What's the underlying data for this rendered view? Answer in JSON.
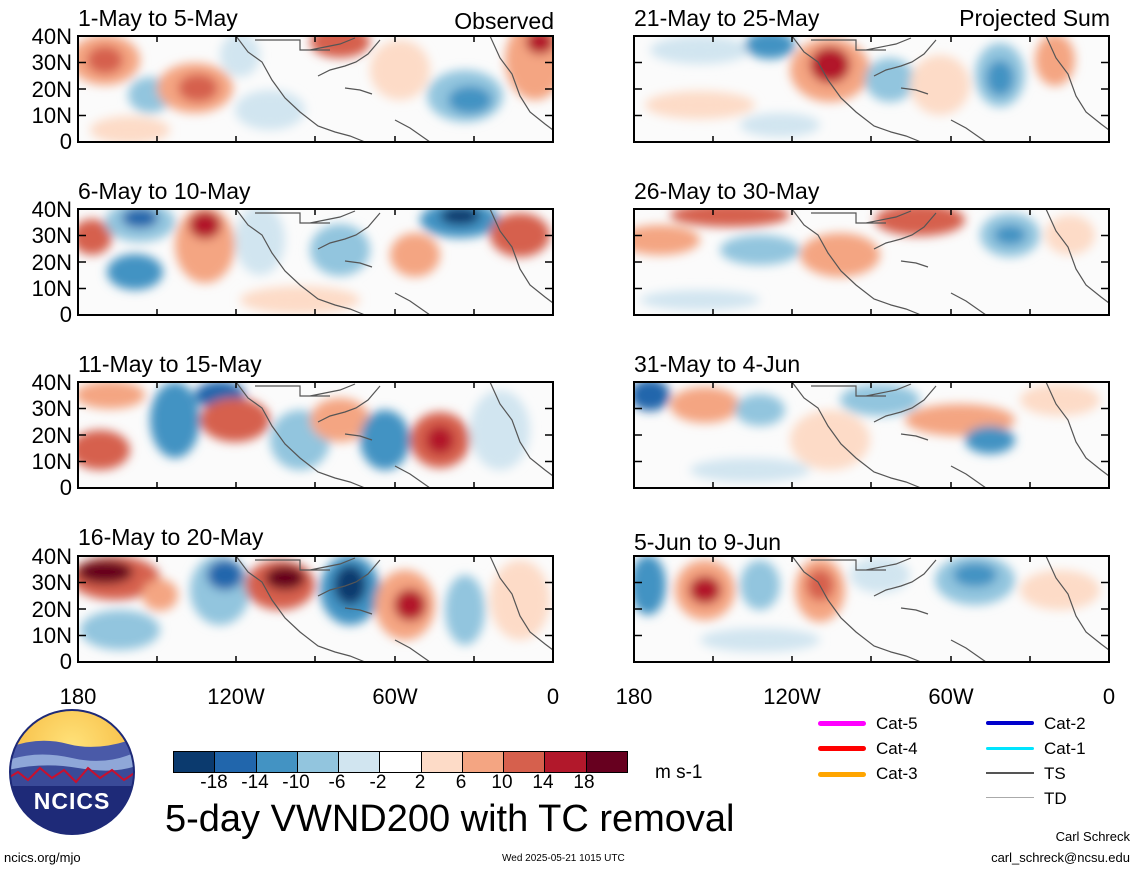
{
  "panels": [
    {
      "title": "1-May to 5-May",
      "corner_label": "Observed"
    },
    {
      "title": "21-May to 25-May",
      "corner_label": "Projected Sum"
    },
    {
      "title": "6-May to 10-May",
      "corner_label": ""
    },
    {
      "title": "26-May to 30-May",
      "corner_label": ""
    },
    {
      "title": "11-May to 15-May",
      "corner_label": ""
    },
    {
      "title": "31-May to 4-Jun",
      "corner_label": ""
    },
    {
      "title": "16-May to 20-May",
      "corner_label": ""
    },
    {
      "title": "5-Jun to 9-Jun",
      "corner_label": ""
    }
  ],
  "y_ticks": [
    "40N",
    "30N",
    "20N",
    "10N",
    "0"
  ],
  "x_ticks": [
    "180",
    "120W",
    "60W",
    "0"
  ],
  "colorbar": {
    "labels": [
      "-18",
      "-14",
      "-10",
      "-6",
      "-2",
      "2",
      "6",
      "10",
      "14",
      "18"
    ],
    "colors": [
      "#0b3a6e",
      "#2166ac",
      "#4393c3",
      "#92c5de",
      "#d1e5f0",
      "#ffffff",
      "#fddbc7",
      "#f4a582",
      "#d6604d",
      "#b2182b",
      "#67001f"
    ],
    "units": "m s-1"
  },
  "legend": [
    {
      "label": "Cat-5",
      "color": "#ff00ff"
    },
    {
      "label": "Cat-2",
      "color": "#0000cc"
    },
    {
      "label": "Cat-4",
      "color": "#ff0000"
    },
    {
      "label": "Cat-1",
      "color": "#00e5ff"
    },
    {
      "label": "Cat-3",
      "color": "#ffa500"
    },
    {
      "label": "TS",
      "color": "#555555"
    },
    {
      "label": "TD",
      "color": "#aaaaaa"
    }
  ],
  "logo_text": "NCICS",
  "main_title": "5-day VWND200 with TC removal",
  "footer": {
    "url": "ncics.org/mjo",
    "timestamp": "Wed 2025-05-21 1015 UTC",
    "author": "Carl Schreck",
    "email": "carl_schreck@ncsu.edu"
  }
}
